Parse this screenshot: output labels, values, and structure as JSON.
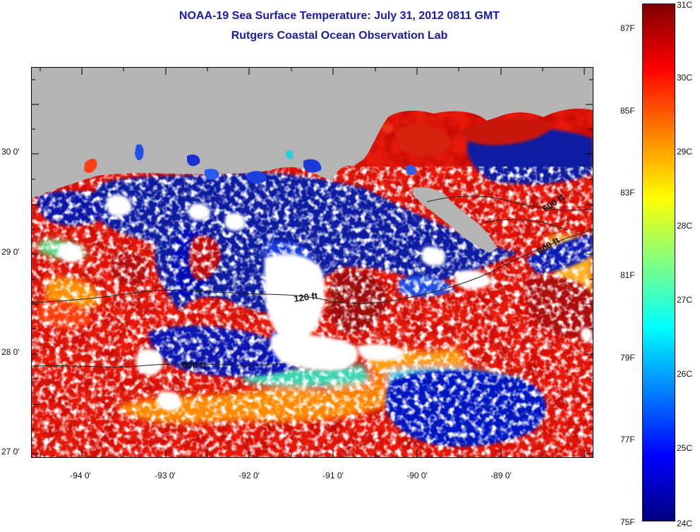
{
  "header": {
    "title": "NOAA-19 Sea Surface Temperature:  July 31, 2012 0811 GMT",
    "subtitle": "Rutgers Coastal Ocean Observation Lab"
  },
  "map": {
    "lat_labels": [
      "30 0'",
      "29 0'",
      "28 0'",
      "27 0'"
    ],
    "lon_labels": [
      "-94 0'",
      "-93 0'",
      "-92 0'",
      "-91 0'",
      "-90 0'",
      "-89 0'"
    ],
    "contour_labels": [
      "120 ft",
      "600 ft",
      "600 ft",
      "600 ft"
    ],
    "colors": {
      "land": "#b4b4b4",
      "cloud": "#ffffff"
    }
  },
  "colorbar": {
    "celsius_labels": [
      "31C",
      "30C",
      "29C",
      "28C",
      "27C",
      "26C",
      "25C",
      "24C"
    ],
    "fahrenheit_labels": [
      "87F",
      "85F",
      "83F",
      "81F",
      "79F",
      "77F",
      "75F"
    ],
    "colors": [
      "#800000",
      "#ff0000",
      "#ff8000",
      "#ffff00",
      "#80ff80",
      "#00ffff",
      "#0080ff",
      "#0000ff",
      "#000080"
    ]
  }
}
